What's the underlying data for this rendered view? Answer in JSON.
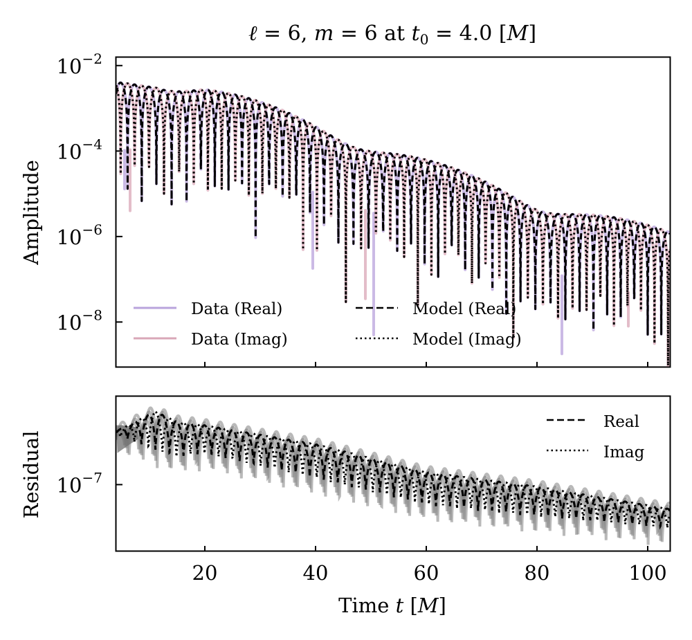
{
  "chart_data": [
    {
      "type": "line",
      "panel": "amplitude",
      "title": "ℓ = 6, m = 6 at t₀ = 4.0 [M]",
      "title_parts": {
        "ell": "ℓ",
        "ell_value": "6",
        "m": "m",
        "m_value": "6",
        "at": "at",
        "t0": "t",
        "t0_sub": "0",
        "t0_value": "4.0",
        "unit": "M"
      },
      "xlabel": "",
      "ylabel": "Amplitude",
      "yscale": "log",
      "xlim": [
        4.0,
        104.0
      ],
      "ylim": [
        9e-10,
        0.0155
      ],
      "xticks": [
        20,
        40,
        60,
        80,
        100
      ],
      "xtick_labels_visible": false,
      "yticks": [
        {
          "value": 0.01,
          "base": "10",
          "exp": "−2"
        },
        {
          "value": 0.0001,
          "base": "10",
          "exp": "−4"
        },
        {
          "value": 1e-06,
          "base": "10",
          "exp": "−6"
        },
        {
          "value": 1e-08,
          "base": "10",
          "exp": "−8"
        }
      ],
      "grid": false,
      "legend": {
        "placement": "lower-left",
        "columns": 2
      },
      "series": [
        {
          "name": "Data (Real)",
          "style": "solid",
          "color": "#b9a3dc",
          "alpha": 0.75,
          "phase": 0.0,
          "envelope_t": [
            4,
            11,
            20,
            40,
            60,
            80,
            104
          ],
          "envelope_abs": [
            0.005,
            0.006,
            0.0039,
            0.00052,
            6.6e-05,
            8.5e-06,
            1.4e-06
          ],
          "deep_troughs": [
            {
              "t": 5.5,
              "value": 1.3e-05
            },
            {
              "t": 39.5,
              "value": 1.8e-07
            },
            {
              "t": 50.5,
              "value": 5e-09
            },
            {
              "t": 84.5,
              "value": 1.8e-09
            }
          ]
        },
        {
          "name": "Data (Imag)",
          "style": "solid",
          "color": "#d9a7b7",
          "alpha": 0.75,
          "phase": 1.5708,
          "envelope_t": [
            4,
            11,
            20,
            40,
            60,
            80,
            104
          ],
          "envelope_abs": [
            0.005,
            0.006,
            0.0039,
            0.00052,
            6.6e-05,
            8.5e-06,
            1.4e-06
          ],
          "deep_troughs": [
            {
              "t": 6.5,
              "value": 4e-06
            },
            {
              "t": 49.0,
              "value": 3.5e-08
            },
            {
              "t": 96.5,
              "value": 8e-09
            }
          ]
        },
        {
          "name": "Model (Real)",
          "style": "dashed",
          "color": "#000000",
          "phase": 0.0,
          "envelope_t": [
            4,
            11,
            20,
            40,
            60,
            80,
            104
          ],
          "envelope_abs": [
            0.005,
            0.006,
            0.0039,
            0.00052,
            6.6e-05,
            8.5e-06,
            1.4e-06
          ]
        },
        {
          "name": "Model (Imag)",
          "style": "dotted",
          "color": "#000000",
          "phase": 1.5708,
          "envelope_t": [
            4,
            11,
            20,
            40,
            60,
            80,
            104
          ],
          "envelope_abs": [
            0.005,
            0.006,
            0.0039,
            0.00052,
            6.6e-05,
            8.5e-06,
            1.4e-06
          ]
        }
      ],
      "oscillation_angular_frequency": 1.24,
      "beat_angular_frequency": 0.185
    },
    {
      "type": "line",
      "panel": "residual",
      "xlabel": "Time t [M]",
      "xlabel_parts": {
        "word": "Time",
        "var": "t",
        "unit": "M"
      },
      "ylabel": "Residual",
      "yscale": "log",
      "xlim": [
        4.0,
        104.0
      ],
      "ylim": [
        4.5e-08,
        2.9e-07
      ],
      "xticks": [
        20,
        40,
        60,
        80,
        100
      ],
      "xtick_labels": [
        "20",
        "40",
        "60",
        "80",
        "100"
      ],
      "yticks": [
        {
          "value": 1e-07,
          "base": "10",
          "exp": "−7"
        }
      ],
      "grid": false,
      "legend": {
        "placement": "top-right",
        "columns": 1
      },
      "band": {
        "name": "Residual samples",
        "color": "#808080",
        "alpha": 0.55,
        "envelope_t": [
          4,
          11,
          15,
          20,
          40,
          60,
          80,
          104
        ],
        "upper": [
          2.05e-07,
          2.6e-07,
          2.3e-07,
          2.2e-07,
          1.75e-07,
          1.25e-07,
          1.05e-07,
          8e-08
        ],
        "lower": [
          1.45e-07,
          1.2e-07,
          1.1e-07,
          1.15e-07,
          8.5e-08,
          6.2e-08,
          5.4e-08,
          4.7e-08
        ]
      },
      "series": [
        {
          "name": "Real",
          "style": "dashed",
          "color": "#000000",
          "phase": 0.0
        },
        {
          "name": "Imag",
          "style": "dotted",
          "color": "#000000",
          "phase": 1.5708
        }
      ]
    }
  ],
  "legend_amplitude": [
    "Data (Real)",
    "Data (Imag)",
    "Model (Real)",
    "Model (Imag)"
  ],
  "legend_residual": [
    "Real",
    "Imag"
  ]
}
